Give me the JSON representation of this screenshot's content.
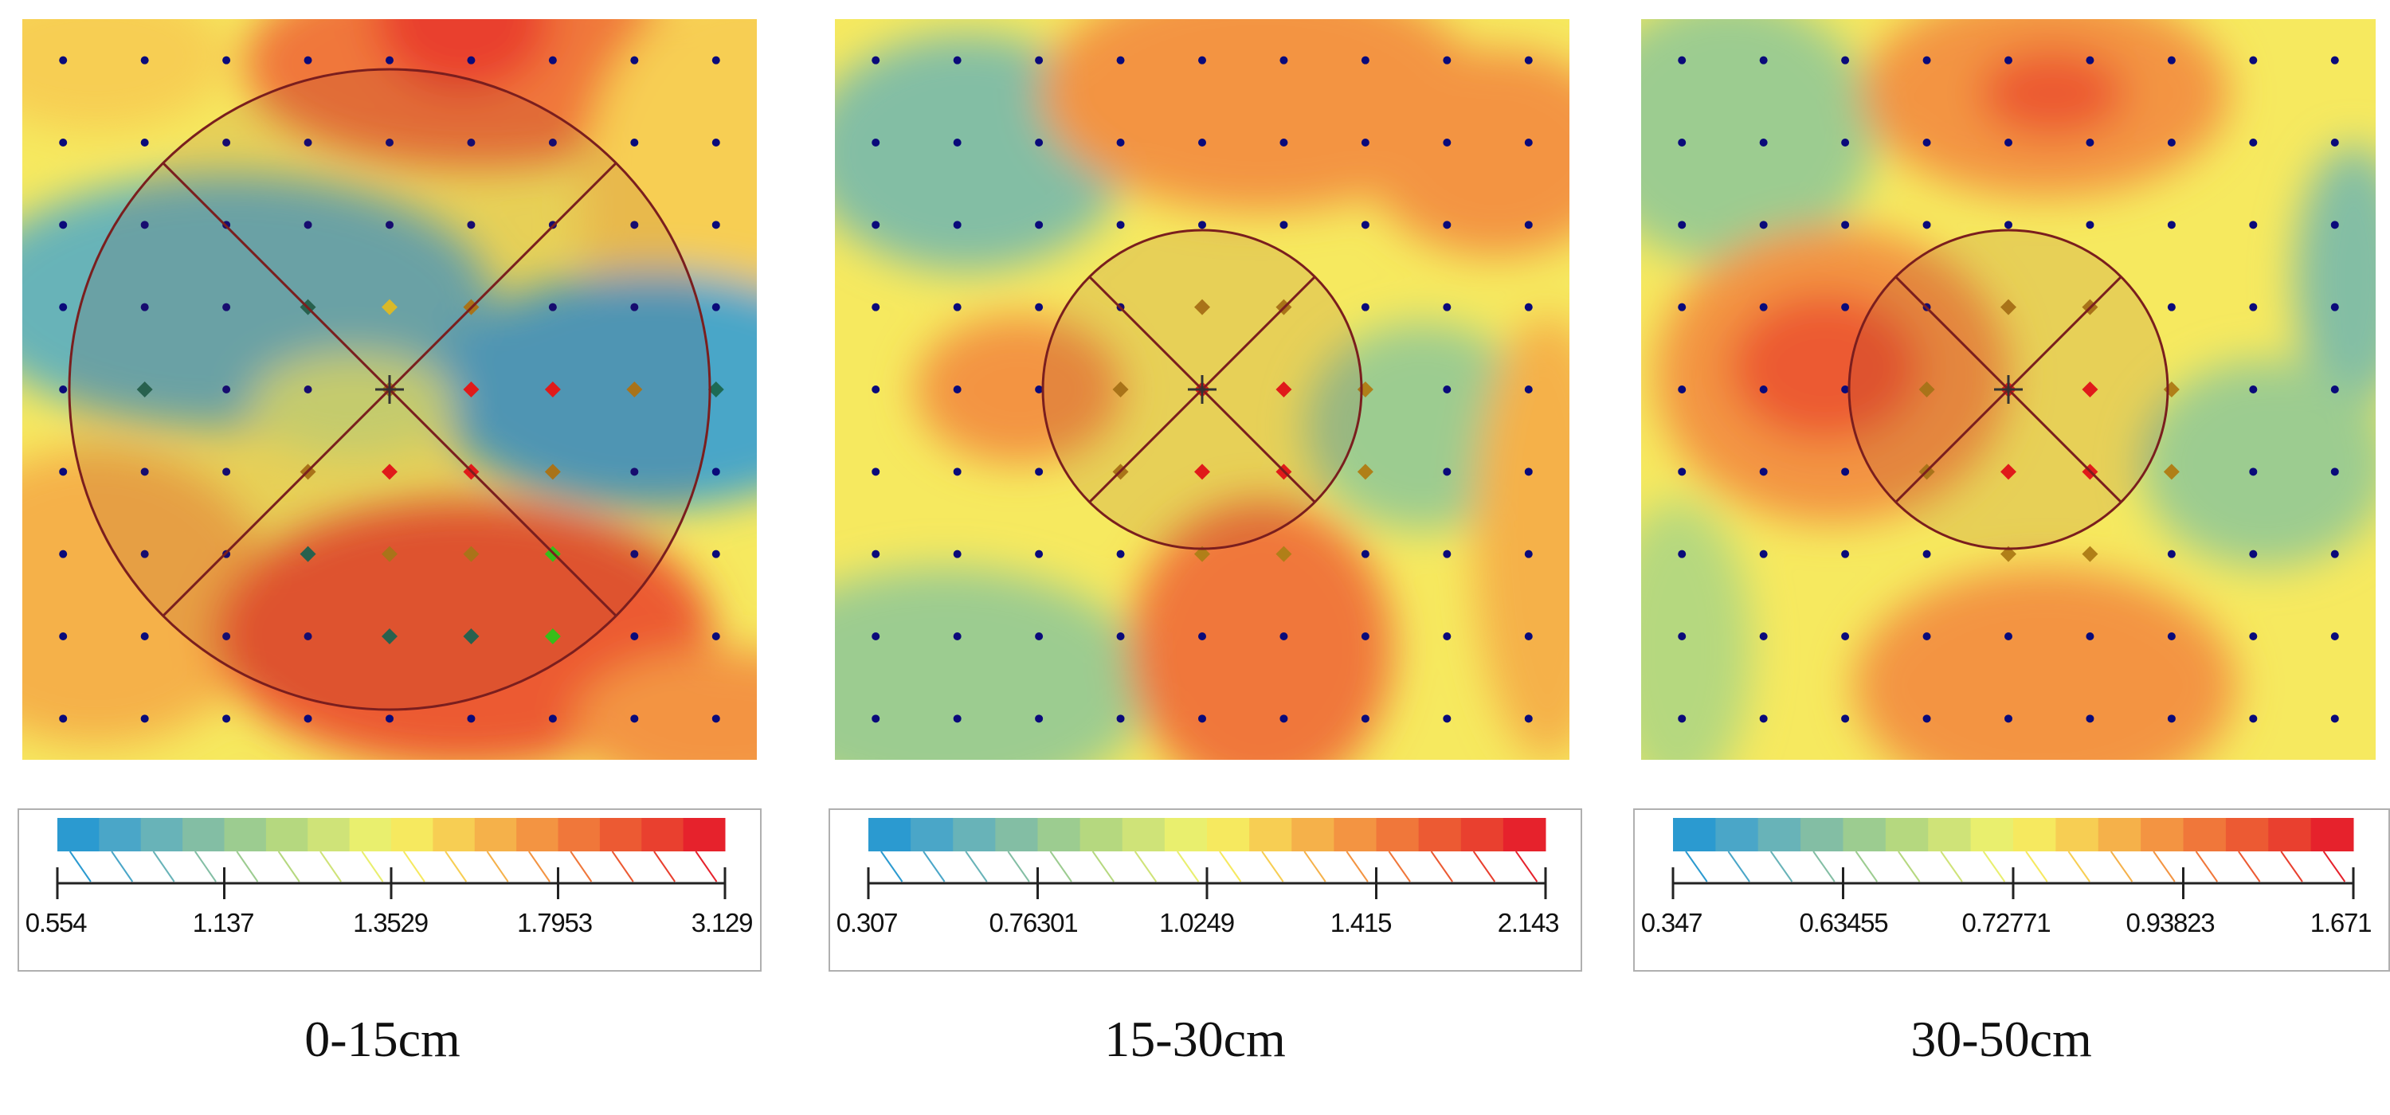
{
  "chart_data": [
    {
      "type": "heatmap",
      "caption": "0-15cm",
      "colorbar_ticks": [
        "0.554",
        "1.137",
        "1.3529",
        "1.7953",
        "3.129"
      ],
      "sampling_circle": "large",
      "sample_points": [
        {
          "x": 3,
          "y": 3,
          "color": "green"
        },
        {
          "x": 1,
          "y": 4,
          "color": "green"
        },
        {
          "x": 4,
          "y": 4,
          "color": "olive"
        },
        {
          "x": 5,
          "y": 4,
          "color": "red"
        },
        {
          "x": 6,
          "y": 4,
          "color": "red"
        },
        {
          "x": 7,
          "y": 4,
          "color": "olive"
        },
        {
          "x": 8,
          "y": 4,
          "color": "green"
        },
        {
          "x": 4,
          "y": 3,
          "color": "yellow"
        },
        {
          "x": 5,
          "y": 3,
          "color": "olive"
        },
        {
          "x": 3,
          "y": 5,
          "color": "olive"
        },
        {
          "x": 4,
          "y": 5,
          "color": "red"
        },
        {
          "x": 5,
          "y": 5,
          "color": "red"
        },
        {
          "x": 6,
          "y": 5,
          "color": "olive"
        },
        {
          "x": 3,
          "y": 6,
          "color": "green"
        },
        {
          "x": 4,
          "y": 6,
          "color": "olive"
        },
        {
          "x": 5,
          "y": 6,
          "color": "olive"
        },
        {
          "x": 6,
          "y": 6,
          "color": "lime"
        },
        {
          "x": 4,
          "y": 7,
          "color": "green"
        },
        {
          "x": 5,
          "y": 7,
          "color": "green"
        },
        {
          "x": 6,
          "y": 7,
          "color": "lime"
        }
      ],
      "blobs": [
        {
          "cx": 0.1,
          "cy": 0.05,
          "rx": 0.18,
          "ry": 0.1,
          "level": 9
        },
        {
          "cx": 0.62,
          "cy": 0.06,
          "rx": 0.32,
          "ry": 0.14,
          "level": 12
        },
        {
          "cx": 0.98,
          "cy": 0.25,
          "rx": 0.22,
          "ry": 0.3,
          "level": 9
        },
        {
          "cx": 0.6,
          "cy": 0.0,
          "rx": 0.12,
          "ry": 0.1,
          "level": 14
        },
        {
          "cx": 0.28,
          "cy": 0.38,
          "rx": 0.36,
          "ry": 0.17,
          "level": 2
        },
        {
          "cx": 0.86,
          "cy": 0.5,
          "rx": 0.3,
          "ry": 0.16,
          "level": 1
        },
        {
          "cx": 0.45,
          "cy": 0.52,
          "rx": 0.14,
          "ry": 0.07,
          "level": 6
        },
        {
          "cx": 0.1,
          "cy": 0.78,
          "rx": 0.24,
          "ry": 0.2,
          "level": 10
        },
        {
          "cx": 0.6,
          "cy": 0.83,
          "rx": 0.34,
          "ry": 0.18,
          "level": 13
        },
        {
          "cx": 0.95,
          "cy": 0.95,
          "rx": 0.2,
          "ry": 0.1,
          "level": 11
        }
      ]
    },
    {
      "type": "heatmap",
      "caption": "15-30cm",
      "colorbar_ticks": [
        "0.307",
        "0.76301",
        "1.0249",
        "1.415",
        "2.143"
      ],
      "sampling_circle": "small",
      "sample_points": [
        {
          "x": 3,
          "y": 4,
          "color": "olive"
        },
        {
          "x": 4,
          "y": 4,
          "color": "red"
        },
        {
          "x": 5,
          "y": 4,
          "color": "red"
        },
        {
          "x": 6,
          "y": 4,
          "color": "olive"
        },
        {
          "x": 3,
          "y": 5,
          "color": "olive"
        },
        {
          "x": 4,
          "y": 5,
          "color": "red"
        },
        {
          "x": 5,
          "y": 5,
          "color": "red"
        },
        {
          "x": 6,
          "y": 5,
          "color": "olive"
        },
        {
          "x": 4,
          "y": 3,
          "color": "olive"
        },
        {
          "x": 5,
          "y": 3,
          "color": "olive"
        },
        {
          "x": 4,
          "y": 6,
          "color": "olive"
        },
        {
          "x": 5,
          "y": 6,
          "color": "olive"
        }
      ],
      "blobs": [
        {
          "cx": 0.18,
          "cy": 0.18,
          "rx": 0.22,
          "ry": 0.16,
          "level": 3
        },
        {
          "cx": 0.58,
          "cy": 0.1,
          "rx": 0.3,
          "ry": 0.16,
          "level": 11
        },
        {
          "cx": 0.9,
          "cy": 0.18,
          "rx": 0.18,
          "ry": 0.14,
          "level": 11
        },
        {
          "cx": 0.25,
          "cy": 0.5,
          "rx": 0.14,
          "ry": 0.1,
          "level": 11
        },
        {
          "cx": 0.8,
          "cy": 0.55,
          "rx": 0.16,
          "ry": 0.14,
          "level": 4
        },
        {
          "cx": 0.15,
          "cy": 0.9,
          "rx": 0.28,
          "ry": 0.16,
          "level": 4
        },
        {
          "cx": 0.58,
          "cy": 0.85,
          "rx": 0.18,
          "ry": 0.2,
          "level": 12
        },
        {
          "cx": 0.97,
          "cy": 0.7,
          "rx": 0.1,
          "ry": 0.3,
          "level": 10
        }
      ]
    },
    {
      "type": "heatmap",
      "caption": "30-50cm",
      "colorbar_ticks": [
        "0.347",
        "0.63455",
        "0.72771",
        "0.93823",
        "1.671"
      ],
      "sampling_circle": "small",
      "sample_points": [
        {
          "x": 3,
          "y": 4,
          "color": "olive"
        },
        {
          "x": 4,
          "y": 4,
          "color": "red"
        },
        {
          "x": 5,
          "y": 4,
          "color": "red"
        },
        {
          "x": 6,
          "y": 4,
          "color": "olive"
        },
        {
          "x": 3,
          "y": 5,
          "color": "olive"
        },
        {
          "x": 4,
          "y": 5,
          "color": "red"
        },
        {
          "x": 5,
          "y": 5,
          "color": "red"
        },
        {
          "x": 6,
          "y": 5,
          "color": "olive"
        },
        {
          "x": 4,
          "y": 3,
          "color": "olive"
        },
        {
          "x": 5,
          "y": 3,
          "color": "olive"
        },
        {
          "x": 4,
          "y": 6,
          "color": "olive"
        },
        {
          "x": 5,
          "y": 6,
          "color": "olive"
        }
      ],
      "blobs": [
        {
          "cx": 0.12,
          "cy": 0.15,
          "rx": 0.2,
          "ry": 0.18,
          "level": 4
        },
        {
          "cx": 0.55,
          "cy": 0.1,
          "rx": 0.25,
          "ry": 0.14,
          "level": 11
        },
        {
          "cx": 0.56,
          "cy": 0.1,
          "rx": 0.1,
          "ry": 0.06,
          "level": 13
        },
        {
          "cx": 0.97,
          "cy": 0.35,
          "rx": 0.08,
          "ry": 0.18,
          "level": 3
        },
        {
          "cx": 0.26,
          "cy": 0.48,
          "rx": 0.24,
          "ry": 0.2,
          "level": 11
        },
        {
          "cx": 0.25,
          "cy": 0.47,
          "rx": 0.13,
          "ry": 0.1,
          "level": 13
        },
        {
          "cx": 0.85,
          "cy": 0.6,
          "rx": 0.17,
          "ry": 0.14,
          "level": 4
        },
        {
          "cx": 0.05,
          "cy": 0.85,
          "rx": 0.1,
          "ry": 0.2,
          "level": 5
        },
        {
          "cx": 0.55,
          "cy": 0.9,
          "rx": 0.26,
          "ry": 0.16,
          "level": 11
        }
      ]
    }
  ],
  "colors": {
    "ramp": [
      "#2b9ad0",
      "#4aa6c8",
      "#68b3b8",
      "#83bea4",
      "#9ccc90",
      "#b5d87f",
      "#cfe378",
      "#e9ef6e",
      "#f6e95f",
      "#f7ce53",
      "#f5b14a",
      "#f39442",
      "#f0773a",
      "#ec5a33",
      "#e9402f",
      "#e6222c"
    ],
    "grid_dot": "#0a0a7a",
    "circle": "#7a1e1e",
    "sample_colors": {
      "red": "#ee1a1a",
      "olive": "#b07f18",
      "green": "#1d6a55",
      "lime": "#2ed318",
      "yellow": "#e8cf2a"
    }
  }
}
